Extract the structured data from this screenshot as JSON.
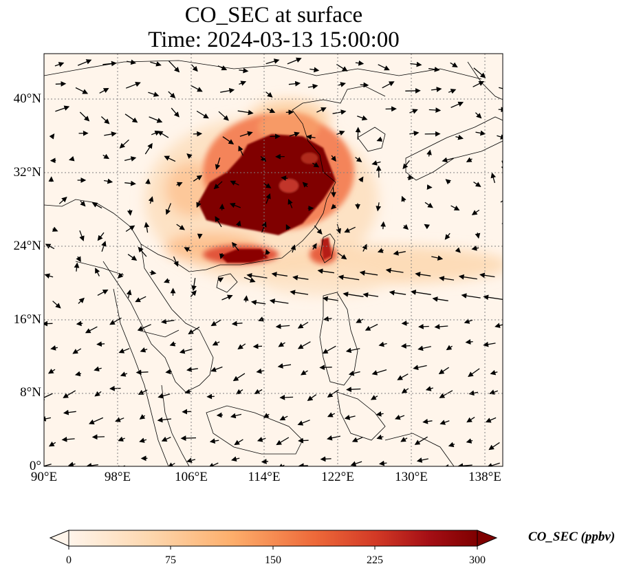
{
  "title": {
    "line1": "CO_SEC at surface",
    "line2": "Time: 2024-03-13 15:00:00"
  },
  "map": {
    "lon_range": [
      90,
      140
    ],
    "lat_range": [
      0,
      44
    ],
    "gridlines": true,
    "lat_ticks": [
      "0°",
      "8°N",
      "16°N",
      "24°N",
      "32°N",
      "40°N"
    ],
    "lon_ticks": [
      "90°E",
      "98°E",
      "106°E",
      "114°E",
      "122°E",
      "130°E",
      "138°E"
    ],
    "field_description": "Surface CO_SEC concentration with wind vectors",
    "plume_max_region": "East China / Yangtze region",
    "wind_vectors": true
  },
  "colorbar": {
    "label": "CO_SEC (ppbv)",
    "ticks": [
      "0",
      "75",
      "150",
      "225",
      "300"
    ],
    "range": [
      0,
      300
    ],
    "colormap": [
      "#fff5eb",
      "#fdd7ae",
      "#fdae6b",
      "#f16913",
      "#d94801",
      "#a50f15",
      "#7f0000"
    ],
    "extend": "both"
  }
}
